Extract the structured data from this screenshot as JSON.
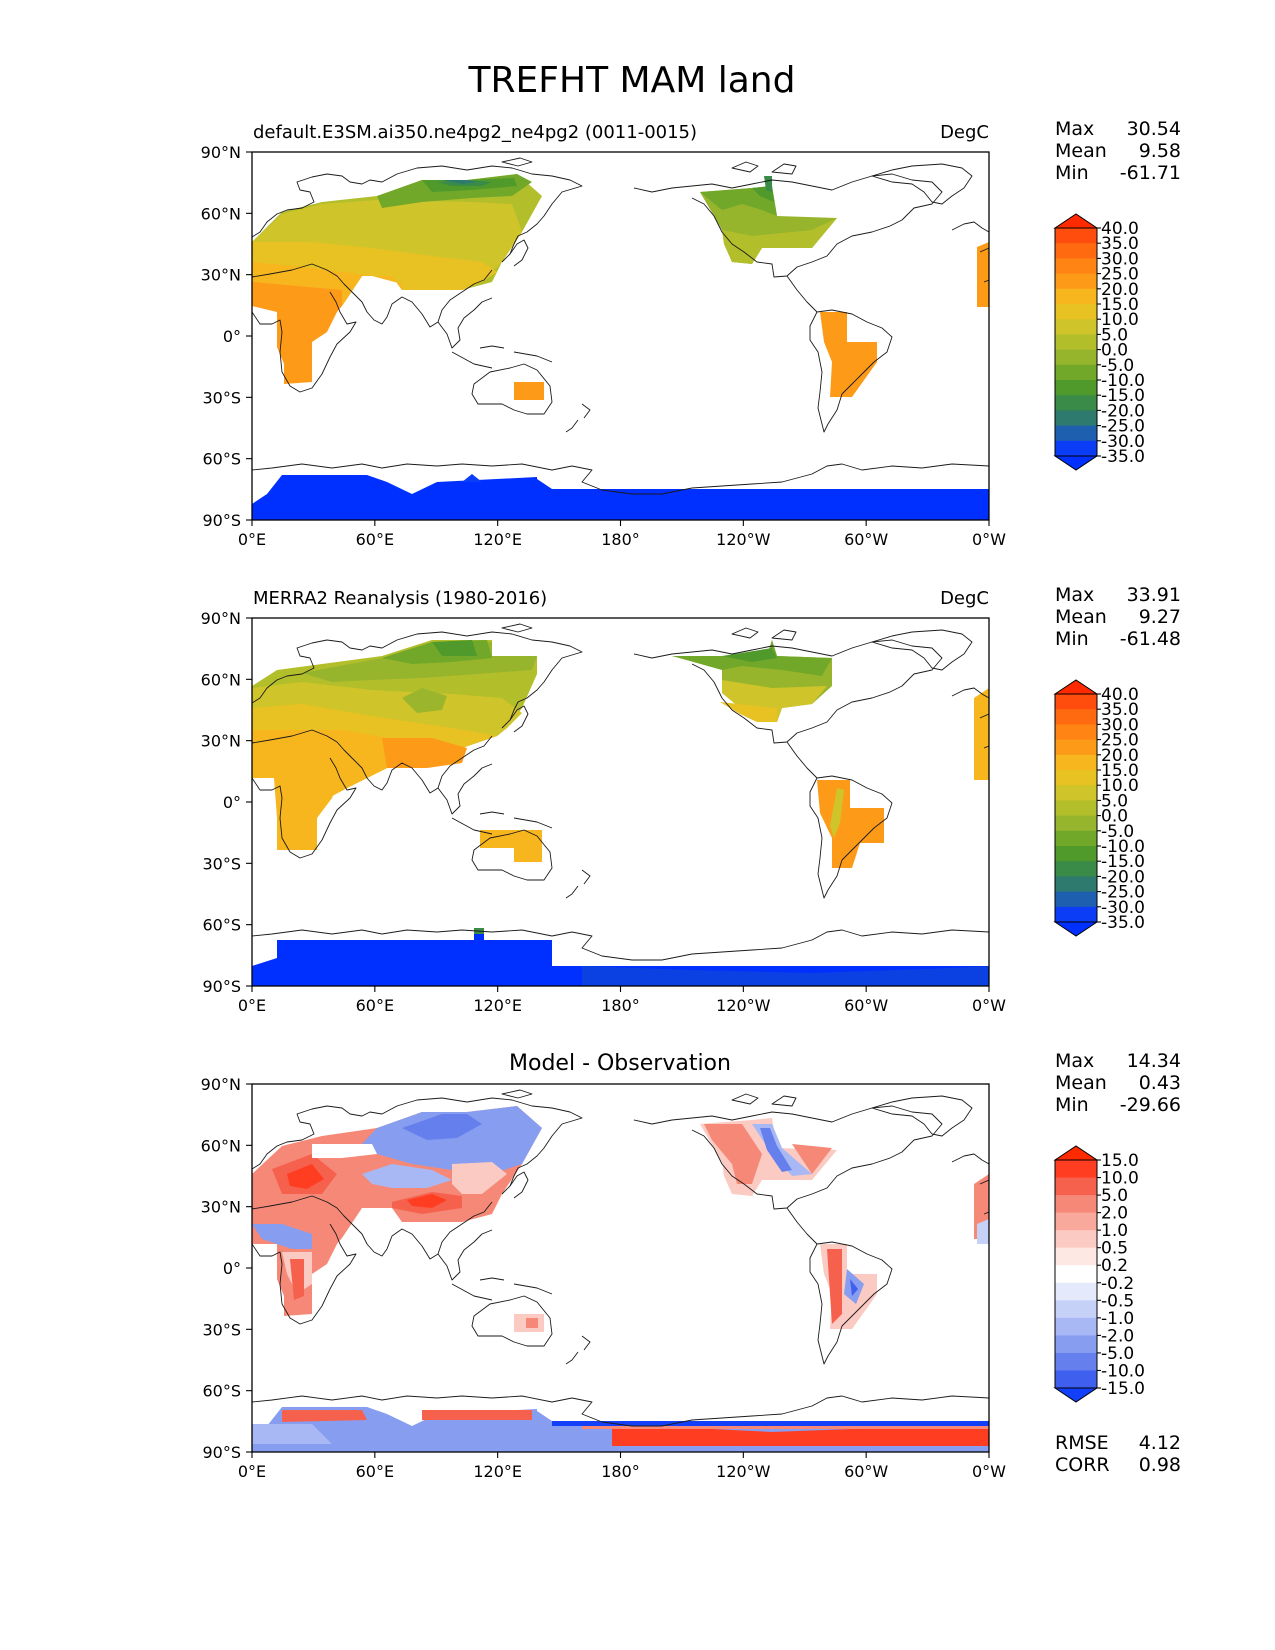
{
  "title": "TREFHT MAM land",
  "x_ticks": [
    "0°E",
    "60°E",
    "120°E",
    "180°",
    "120°W",
    "60°W",
    "0°W"
  ],
  "y_ticks": [
    "90°N",
    "60°N",
    "30°N",
    "0°",
    "30°S",
    "60°S",
    "90°S"
  ],
  "panels": [
    {
      "id": "model",
      "title_left": "default.E3SM.ai350.ne4pg2_ne4pg2 (0011-0015)",
      "title_center": "",
      "units": "DegC",
      "stats": [
        {
          "label": "Max",
          "value": "30.54"
        },
        {
          "label": "Mean",
          "value": "9.58"
        },
        {
          "label": "Min",
          "value": "-61.71"
        }
      ],
      "colorbar_labels": [
        "40.0",
        "35.0",
        "30.0",
        "25.0",
        "20.0",
        "15.0",
        "10.0",
        "5.0",
        "0.0",
        "-5.0",
        "-10.0",
        "-15.0",
        "-20.0",
        "-25.0",
        "-30.0",
        "-35.0"
      ],
      "colorbar_colors": [
        "#ff2a00",
        "#ff4d0d",
        "#ff6a10",
        "#ff8414",
        "#fd9b18",
        "#f7b51e",
        "#e8c123",
        "#cfc429",
        "#b3be2b",
        "#96b52c",
        "#71a82a",
        "#4f9a2a",
        "#3a8a48",
        "#2e7a6e",
        "#1f5fb0",
        "#0a3df5",
        "#0030ff"
      ],
      "stats_extra": []
    },
    {
      "id": "obs",
      "title_left": "MERRA2 Reanalysis (1980-2016)",
      "title_center": "",
      "units": "DegC",
      "stats": [
        {
          "label": "Max",
          "value": "33.91"
        },
        {
          "label": "Mean",
          "value": "9.27"
        },
        {
          "label": "Min",
          "value": "-61.48"
        }
      ],
      "colorbar_labels": [
        "40.0",
        "35.0",
        "30.0",
        "25.0",
        "20.0",
        "15.0",
        "10.0",
        "5.0",
        "0.0",
        "-5.0",
        "-10.0",
        "-15.0",
        "-20.0",
        "-25.0",
        "-30.0",
        "-35.0"
      ],
      "colorbar_colors": [
        "#ff2a00",
        "#ff4d0d",
        "#ff6a10",
        "#ff8414",
        "#fd9b18",
        "#f7b51e",
        "#e8c123",
        "#cfc429",
        "#b3be2b",
        "#96b52c",
        "#71a82a",
        "#4f9a2a",
        "#3a8a48",
        "#2e7a6e",
        "#1f5fb0",
        "#0a3df5",
        "#0030ff"
      ],
      "stats_extra": []
    },
    {
      "id": "diff",
      "title_left": "",
      "title_center": "Model - Observation",
      "units": "",
      "stats": [
        {
          "label": "Max",
          "value": "14.34"
        },
        {
          "label": "Mean",
          "value": "0.43"
        },
        {
          "label": "Min",
          "value": "-29.66"
        }
      ],
      "colorbar_labels": [
        "15.0",
        "10.0",
        "5.0",
        "2.0",
        "1.0",
        "0.5",
        "0.2",
        "-0.2",
        "-0.5",
        "-1.0",
        "-2.0",
        "-5.0",
        "-10.0",
        "-15.0"
      ],
      "colorbar_colors": [
        "#ff2a00",
        "#ff3d20",
        "#f6614e",
        "#f68877",
        "#f9a89c",
        "#fbcac2",
        "#fde8e4",
        "#ffffff",
        "#e4e9fb",
        "#c6d1f8",
        "#a7b8f4",
        "#879df0",
        "#6580ec",
        "#3f5fee",
        "#1240fa"
      ],
      "stats_extra": [
        {
          "label": "RMSE",
          "value": "4.12"
        },
        {
          "label": "CORR",
          "value": "0.98"
        }
      ]
    }
  ]
}
